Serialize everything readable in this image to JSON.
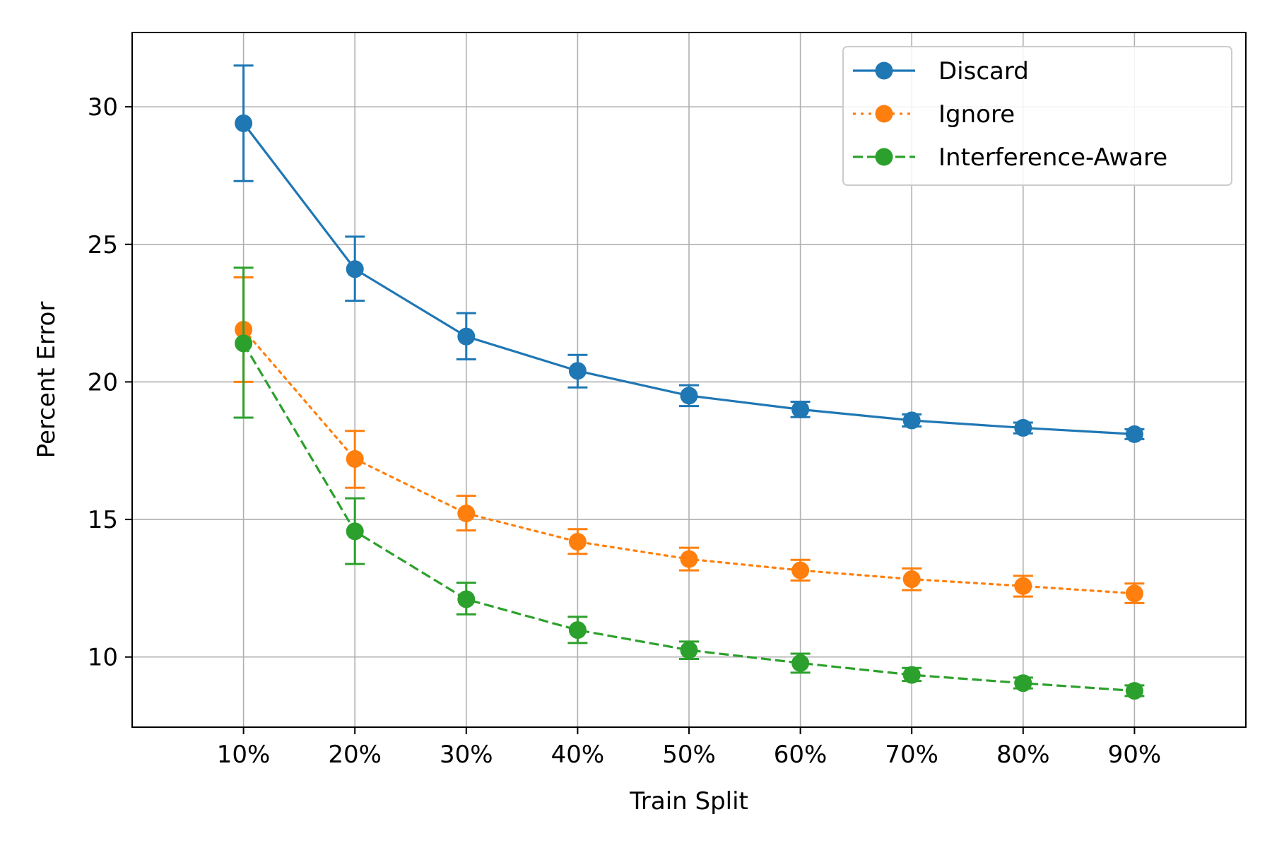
{
  "chart_data": {
    "type": "line",
    "xlabel": "Train Split",
    "ylabel": "Percent Error",
    "categories": [
      "10%",
      "20%",
      "30%",
      "40%",
      "50%",
      "60%",
      "70%",
      "80%",
      "90%"
    ],
    "x": [
      10,
      20,
      30,
      40,
      50,
      60,
      70,
      80,
      90
    ],
    "xlim": [
      0,
      100
    ],
    "ylim": [
      7.45,
      32.7
    ],
    "yticks": [
      10,
      15,
      20,
      25,
      30
    ],
    "grid": true,
    "legend_position": "top-right",
    "series": [
      {
        "name": "Discard",
        "color": "#1f77b4",
        "linestyle": "solid",
        "values": [
          29.4,
          24.1,
          21.65,
          20.4,
          19.5,
          19.0,
          18.6,
          18.33,
          18.1
        ],
        "error_low": [
          27.3,
          22.95,
          20.82,
          19.8,
          19.12,
          18.72,
          18.38,
          18.13,
          17.92
        ],
        "error_high": [
          31.5,
          25.28,
          22.5,
          20.98,
          19.88,
          19.28,
          18.82,
          18.52,
          18.28
        ]
      },
      {
        "name": "Ignore",
        "color": "#ff7f0e",
        "linestyle": "dotted",
        "values": [
          21.9,
          17.2,
          15.22,
          14.19,
          13.56,
          13.15,
          12.83,
          12.58,
          12.31
        ],
        "error_low": [
          20.0,
          16.15,
          14.6,
          13.75,
          13.15,
          12.78,
          12.43,
          12.2,
          11.96
        ],
        "error_high": [
          23.8,
          18.22,
          15.86,
          14.65,
          13.97,
          13.53,
          13.22,
          12.95,
          12.67
        ]
      },
      {
        "name": "Interference-Aware",
        "color": "#2ca02c",
        "linestyle": "dashed",
        "values": [
          21.4,
          14.57,
          12.1,
          10.98,
          10.25,
          9.78,
          9.35,
          9.05,
          8.77
        ],
        "error_low": [
          18.7,
          13.38,
          11.55,
          10.51,
          9.93,
          9.43,
          9.13,
          8.86,
          8.58
        ],
        "error_high": [
          24.15,
          15.77,
          12.7,
          11.46,
          10.56,
          10.12,
          9.6,
          9.25,
          8.97
        ]
      }
    ]
  }
}
